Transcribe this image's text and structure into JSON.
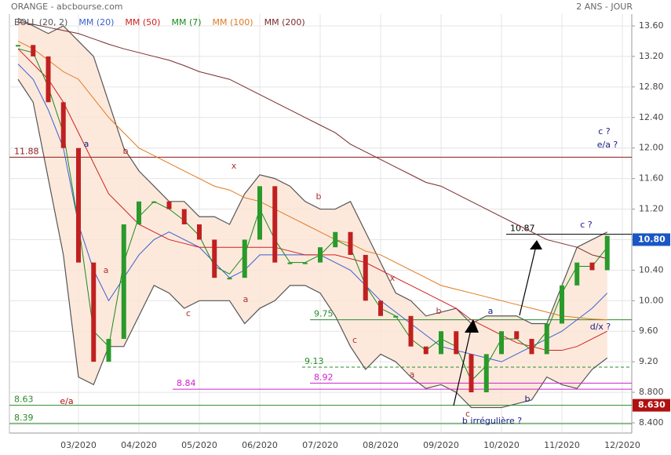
{
  "header": {
    "title": "ORANGE - abcbourse.com",
    "period": "2 ANS - JOUR"
  },
  "chart_data": {
    "type": "stock",
    "categories": [
      null,
      null,
      null,
      null,
      "03/2020",
      null,
      null,
      null,
      "04/2020",
      null,
      null,
      null,
      "05/2020",
      null,
      null,
      null,
      "06/2020",
      null,
      null,
      null,
      "07/2020",
      null,
      null,
      null,
      "08/2020",
      null,
      null,
      null,
      "09/2020",
      null,
      null,
      null,
      "10/2020",
      null,
      null,
      null,
      "11/2020",
      null,
      null,
      null,
      "12/2020"
    ],
    "price": {
      "color": "#2a9a2a",
      "values": [
        13.35,
        13.2,
        12.6,
        12.0,
        10.5,
        9.2,
        9.5,
        11.0,
        11.3,
        11.3,
        11.2,
        11.0,
        10.8,
        10.3,
        10.3,
        10.8,
        11.5,
        10.5,
        10.5,
        10.5,
        10.7,
        10.9,
        10.6,
        10.0,
        9.8,
        9.8,
        9.4,
        9.3,
        9.6,
        9.3,
        8.8,
        9.3,
        9.6,
        9.5,
        9.3,
        9.7,
        10.2,
        10.5,
        10.4,
        10.85,
        null
      ]
    },
    "series": [
      {
        "name": "BOLL (20, 2)",
        "color": "#555555",
        "values": [
          13.7,
          13.6,
          13.5,
          13.6,
          13.4,
          13.2,
          12.6,
          12.0,
          11.7,
          11.5,
          11.3,
          11.3,
          11.1,
          11.1,
          11.0,
          11.4,
          11.65,
          11.6,
          11.5,
          11.3,
          11.2,
          11.2,
          11.3,
          10.9,
          10.5,
          10.1,
          10.0,
          9.8,
          9.85,
          9.9,
          9.7,
          9.8,
          9.8,
          9.8,
          9.7,
          9.7,
          10.2,
          10.7,
          10.8,
          10.9,
          null
        ],
        "lower": [
          12.9,
          12.6,
          11.6,
          10.6,
          9.0,
          8.9,
          9.4,
          9.4,
          9.8,
          10.2,
          10.1,
          9.9,
          10.0,
          10.0,
          10.0,
          9.7,
          9.9,
          10.0,
          10.2,
          10.2,
          10.1,
          9.8,
          9.4,
          9.1,
          9.3,
          9.2,
          9.0,
          8.85,
          8.9,
          8.8,
          8.6,
          8.6,
          8.6,
          8.65,
          8.7,
          9.0,
          8.9,
          8.85,
          9.1,
          9.25,
          null
        ]
      },
      {
        "name": "MM (20)",
        "color": "#3a5fd0",
        "values": [
          13.1,
          12.9,
          12.5,
          12.0,
          11.0,
          10.4,
          10.0,
          10.3,
          10.6,
          10.8,
          10.9,
          10.8,
          10.7,
          10.5,
          10.3,
          10.4,
          10.6,
          10.6,
          10.6,
          10.6,
          10.6,
          10.5,
          10.4,
          10.2,
          10.0,
          9.85,
          9.7,
          9.55,
          9.4,
          9.35,
          9.3,
          9.25,
          9.2,
          9.3,
          9.4,
          9.5,
          9.6,
          9.75,
          9.9,
          10.1,
          null
        ]
      },
      {
        "name": "MM (50)",
        "color": "#d02020",
        "values": [
          13.3,
          13.1,
          12.9,
          12.6,
          12.2,
          11.8,
          11.4,
          11.2,
          11.0,
          10.9,
          10.8,
          10.75,
          10.7,
          10.7,
          10.7,
          10.7,
          10.7,
          10.7,
          10.65,
          10.6,
          10.6,
          10.6,
          10.55,
          10.5,
          10.4,
          10.3,
          10.2,
          10.1,
          10.0,
          9.9,
          9.75,
          9.65,
          9.55,
          9.45,
          9.4,
          9.35,
          9.35,
          9.4,
          9.5,
          9.6,
          null
        ]
      },
      {
        "name": "MM (7)",
        "color": "#1a8a1a",
        "values": [
          13.3,
          13.25,
          12.8,
          12.2,
          11.0,
          9.6,
          9.4,
          10.5,
          11.1,
          11.3,
          11.2,
          11.05,
          10.85,
          10.45,
          10.35,
          10.6,
          11.2,
          10.8,
          10.5,
          10.5,
          10.6,
          10.8,
          10.7,
          10.2,
          9.9,
          9.8,
          9.5,
          9.35,
          9.5,
          9.4,
          8.95,
          9.15,
          9.5,
          9.5,
          9.35,
          9.6,
          10.1,
          10.45,
          10.45,
          10.7,
          null
        ]
      },
      {
        "name": "MM (100)",
        "color": "#e07a20",
        "values": [
          13.4,
          13.3,
          13.15,
          13.0,
          12.9,
          12.65,
          12.4,
          12.2,
          12.0,
          11.9,
          11.8,
          11.7,
          11.6,
          11.5,
          11.45,
          11.35,
          11.3,
          11.2,
          11.1,
          11.0,
          10.9,
          10.8,
          10.75,
          10.65,
          10.6,
          10.5,
          10.4,
          10.3,
          10.2,
          10.15,
          10.1,
          10.05,
          10.0,
          9.95,
          9.9,
          9.85,
          9.8,
          9.78,
          9.76,
          9.75,
          null
        ]
      },
      {
        "name": "MM (200)",
        "color": "#7a2a2a",
        "values": [
          13.65,
          13.62,
          13.58,
          13.54,
          13.5,
          13.43,
          13.36,
          13.3,
          13.25,
          13.2,
          13.15,
          13.08,
          13.0,
          12.95,
          12.9,
          12.8,
          12.7,
          12.6,
          12.5,
          12.4,
          12.3,
          12.2,
          12.05,
          11.95,
          11.85,
          11.75,
          11.65,
          11.55,
          11.5,
          11.4,
          11.3,
          11.2,
          11.1,
          11.0,
          10.9,
          10.8,
          10.75,
          10.7,
          10.6,
          10.55,
          null
        ]
      }
    ],
    "ylim": [
      8.4,
      13.6
    ],
    "yticks": [
      {
        "value": 8.4,
        "label": "8.400"
      },
      {
        "value": 8.8,
        "label": "8.800"
      },
      {
        "value": 9.2,
        "label": "9.20"
      },
      {
        "value": 9.6,
        "label": "9.60"
      },
      {
        "value": 10.0,
        "label": "10.00"
      },
      {
        "value": 10.4,
        "label": "10.40"
      },
      {
        "value": 10.8,
        "label": "10.80"
      },
      {
        "value": 11.2,
        "label": "11.20"
      },
      {
        "value": 11.6,
        "label": "11.60"
      },
      {
        "value": 12.0,
        "label": "12.00"
      },
      {
        "value": 12.4,
        "label": "12.40"
      },
      {
        "value": 12.8,
        "label": "12.80"
      },
      {
        "value": 13.2,
        "label": "13.20"
      },
      {
        "value": 13.6,
        "label": "13.60"
      }
    ],
    "grid": true,
    "levels": [
      {
        "value": 11.88,
        "color": "#8b1a1a",
        "label_color": "#8b1a1a"
      },
      {
        "value": 9.75,
        "color": "#2a8a2a",
        "label_color": "#2a8a2a"
      },
      {
        "value": 9.13,
        "color": "#2a8a2a",
        "label_color": "#2a8a2a",
        "dashed": true
      },
      {
        "value": 8.92,
        "color": "#d020d0",
        "label_color": "#d020d0"
      },
      {
        "value": 8.84,
        "color": "#d020d0",
        "label_color": "#d020d0"
      },
      {
        "value": 8.63,
        "color": "#2a8a2a",
        "label_color": "#2a8a2a"
      },
      {
        "value": 8.39,
        "color": "#2a8a2a",
        "label_color": "#2a8a2a"
      },
      {
        "value": 10.87,
        "color": "#000000",
        "label_color": "#000000"
      }
    ],
    "price_tags": [
      {
        "value": 10.8,
        "label": "10.80",
        "color": "#1a56c4"
      },
      {
        "value": 8.63,
        "label": "8.630",
        "color": "#b01010"
      }
    ],
    "annotations": [
      {
        "text": "a",
        "color": "#1a1a8a"
      },
      {
        "text": "b",
        "color": "#b03030"
      },
      {
        "text": "a",
        "color": "#b03030"
      },
      {
        "text": "c",
        "color": "#b03030"
      },
      {
        "text": "x",
        "color": "#b03030"
      },
      {
        "text": "a",
        "color": "#b03030"
      },
      {
        "text": "b",
        "color": "#b03030"
      },
      {
        "text": "c",
        "color": "#b03030"
      },
      {
        "text": "x",
        "color": "#b03030"
      },
      {
        "text": "a",
        "color": "#b03030"
      },
      {
        "text": "b",
        "color": "#b03030"
      },
      {
        "text": "c",
        "color": "#b03030"
      },
      {
        "text": "e/a",
        "color": "#b01010"
      },
      {
        "text": "b irrégulière ?",
        "color": "#1a1a8a"
      },
      {
        "text": "a",
        "color": "#1a1a8a"
      },
      {
        "text": "b",
        "color": "#1a1a8a"
      },
      {
        "text": "c ?",
        "color": "#1a1a8a"
      },
      {
        "text": "e/a ?",
        "color": "#1a1a8a"
      },
      {
        "text": "c ?",
        "color": "#1a1a8a"
      },
      {
        "text": "d/x ?",
        "color": "#1a1a8a"
      }
    ]
  }
}
